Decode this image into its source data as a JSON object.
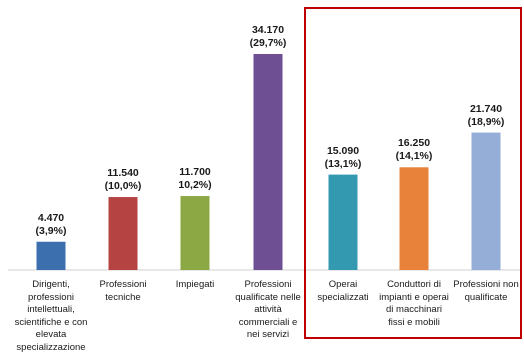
{
  "chart_data": {
    "type": "bar",
    "categories": [
      "Dirigenti,\nprofessioni\nintellettuali,\nscientifiche e con\nelevata\nspecializzazione",
      "Professioni\ntecniche",
      "Impiegati",
      "Professioni\nqualificate nelle\nattività\ncommerciali e\nnei servizi",
      "Operai\nspecializzati",
      "Conduttori di\nimpianti e operai\ndi macchinari\nfissi e mobili",
      "Professioni non\nqualificate"
    ],
    "values": [
      4470,
      11540,
      11700,
      34170,
      15090,
      16250,
      21740
    ],
    "value_labels": [
      "4.470",
      "11.540",
      "11.700",
      "34.170",
      "15.090",
      "16.250",
      "21.740"
    ],
    "share_labels": [
      "(3,9%)",
      "(10,0%)",
      "10,2%)",
      "(29,7%)",
      "(13,1%)",
      "(14,1%)",
      "(18,9%)"
    ],
    "colors": [
      "#3c6fad",
      "#b44341",
      "#8ca845",
      "#6e4f94",
      "#3399b0",
      "#e8823a",
      "#94aed8"
    ],
    "highlight": {
      "from_index": 4,
      "to_index": 6,
      "color": "#c00000"
    },
    "ylim": [
      0,
      34170
    ],
    "grid": false,
    "legend": "none",
    "title": "",
    "xlabel": "",
    "ylabel": ""
  }
}
